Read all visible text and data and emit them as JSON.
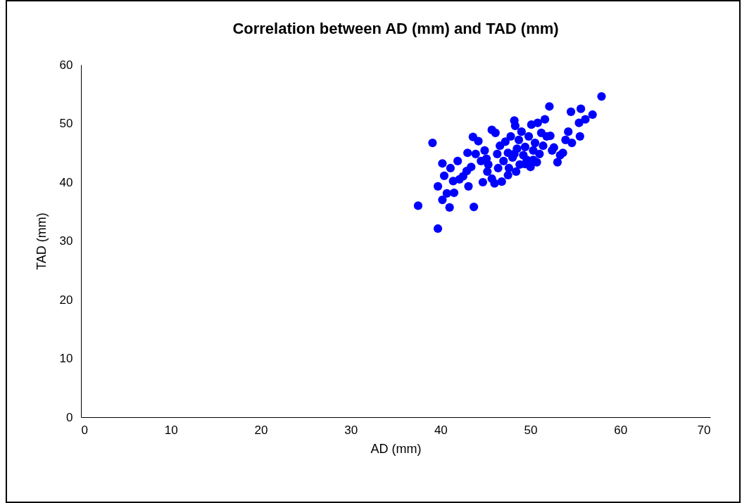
{
  "chart_data": {
    "type": "scatter",
    "title": "Correlation between AD (mm) and TAD (mm)",
    "xlabel": "AD (mm)",
    "ylabel": "TAD (mm)",
    "x": [
      37.5,
      39.7,
      39.1,
      39.7,
      40.2,
      40.2,
      40.4,
      40.7,
      41.0,
      41.1,
      41.4,
      41.5,
      41.9,
      42.1,
      42.5,
      42.9,
      43.1,
      43.0,
      43.4,
      43.7,
      43.6,
      43.9,
      44.2,
      44.5,
      44.7,
      44.9,
      45.2,
      45.3,
      45.7,
      45.7,
      46.0,
      46.1,
      46.3,
      46.4,
      46.6,
      46.8,
      47.0,
      47.2,
      47.5,
      47.6,
      47.8,
      48.0,
      48.2,
      48.3,
      48.4,
      48.5,
      48.7,
      48.8,
      49.0,
      49.2,
      49.4,
      49.6,
      49.8,
      50.0,
      50.1,
      50.3,
      50.5,
      50.7,
      50.8,
      51.0,
      51.2,
      51.4,
      51.6,
      51.8,
      52.1,
      52.2,
      52.4,
      52.6,
      53.0,
      53.3,
      53.6,
      53.9,
      54.2,
      54.5,
      54.6,
      55.4,
      55.5,
      55.6,
      56.1,
      56.9,
      57.9,
      49.4,
      48.2,
      47.5,
      50.3,
      45.1
    ],
    "series": [
      {
        "color": "#0000ff",
        "values": [
          36.0,
          32.1,
          46.7,
          39.3,
          43.2,
          37.0,
          41.1,
          38.1,
          35.7,
          42.4,
          40.2,
          38.2,
          43.6,
          40.5,
          41.0,
          41.9,
          39.3,
          45.0,
          42.6,
          35.8,
          47.7,
          44.8,
          47.0,
          43.6,
          40.0,
          45.4,
          41.8,
          43.0,
          48.9,
          40.6,
          39.8,
          48.4,
          44.8,
          42.4,
          46.2,
          40.1,
          43.6,
          46.9,
          45.0,
          42.4,
          47.8,
          44.2,
          50.5,
          49.6,
          41.8,
          45.7,
          47.2,
          43.0,
          48.6,
          44.6,
          46.0,
          43.8,
          47.8,
          42.6,
          49.8,
          45.4,
          46.7,
          43.4,
          50.1,
          44.8,
          48.4,
          46.2,
          50.7,
          47.8,
          52.9,
          47.9,
          45.4,
          45.9,
          43.4,
          44.6,
          45.0,
          47.2,
          48.6,
          52.0,
          46.7,
          50.1,
          47.8,
          52.5,
          50.7,
          51.5,
          54.6,
          43.1,
          44.8,
          41.2,
          43.8,
          44.0
        ]
      }
    ],
    "xlim": [
      0,
      70
    ],
    "xticks": [
      0,
      10,
      20,
      30,
      40,
      50,
      60,
      70
    ],
    "ylim": [
      0,
      60
    ],
    "yticks": [
      0,
      10,
      20,
      30,
      40,
      50,
      60
    ],
    "grid": false
  }
}
